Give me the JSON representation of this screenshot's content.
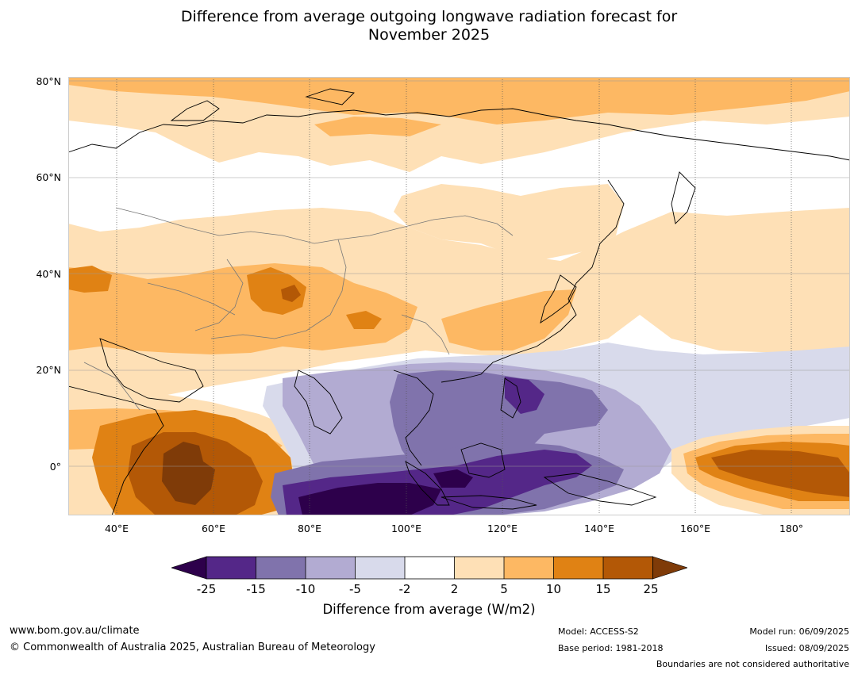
{
  "title": {
    "line1": "Difference from average outgoing longwave radiation forecast for",
    "line2": "November 2025"
  },
  "map": {
    "lat_labels": [
      "80°N",
      "60°N",
      "40°N",
      "20°N",
      "0°"
    ],
    "lon_labels": [
      "40°E",
      "60°E",
      "80°E",
      "100°E",
      "120°E",
      "140°E",
      "160°E",
      "180°"
    ],
    "colors": {
      "c_lt_m25": "#2d004b",
      "c_m25_m15": "#542788",
      "c_m15_m10": "#8073ac",
      "c_m10_m5": "#b2abd2",
      "c_m5_m2": "#d8daeb",
      "c_m2_2": "#ffffff",
      "c_2_5": "#fee0b6",
      "c_5_10": "#fdb863",
      "c_10_15": "#e08214",
      "c_15_25": "#b35806",
      "c_gt_25": "#7f3b08"
    }
  },
  "colorbar": {
    "ticks": [
      "-25",
      "-15",
      "-10",
      "-5",
      "-2",
      "2",
      "5",
      "10",
      "15",
      "25"
    ],
    "label": "Difference from average (W/m2)"
  },
  "footer": {
    "website": "www.bom.gov.au/climate",
    "copyright": "© Commonwealth of Australia 2025, Australian Bureau of Meteorology",
    "model": "Model: ACCESS-S2",
    "base_period": "Base period: 1981-2018",
    "model_run": "Model run: 06/09/2025",
    "issued": "Issued: 08/09/2025",
    "disclaimer": "Boundaries are not considered authoritative"
  }
}
